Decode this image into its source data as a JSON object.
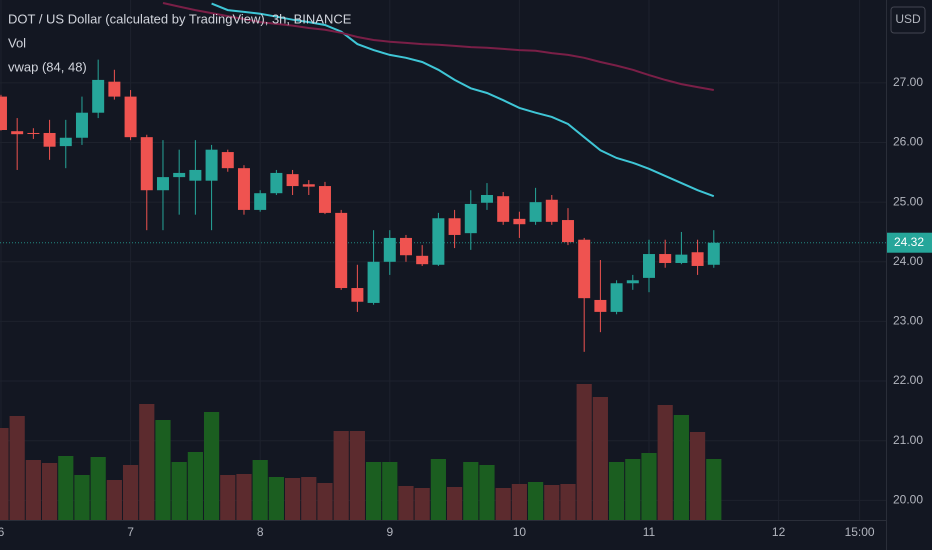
{
  "chart_data": {
    "type": "candlestick",
    "title": "DOT / US Dollar (calculated by TradingView), 3h, BINANCE",
    "volume_label": "Vol",
    "indicator_label": "vwap (84, 48)",
    "currency": "USD",
    "up_color": "#26a69a",
    "down_color": "#ef5350",
    "volume_up_color": "#1b5e20",
    "volume_down_color": "#5c2b2e",
    "open": [
      26.77,
      26.19,
      26.16,
      26.16,
      25.94,
      26.08,
      26.5,
      27.02,
      26.77,
      26.09,
      25.2,
      25.42,
      25.36,
      25.36,
      25.84,
      25.57,
      24.87,
      25.15,
      25.47,
      25.3,
      25.27,
      24.82,
      23.56,
      23.31,
      24.0,
      24.4,
      24.1,
      23.95,
      24.73,
      24.48,
      24.99,
      25.1,
      24.72,
      24.67,
      25.04,
      24.7,
      24.37,
      23.36,
      23.16,
      23.64,
      23.73,
      24.13,
      23.98,
      24.16,
      23.95
    ],
    "high": [
      26.8,
      26.41,
      26.24,
      26.38,
      26.38,
      26.77,
      27.39,
      27.22,
      26.88,
      26.13,
      26.04,
      25.88,
      26.04,
      25.96,
      25.88,
      25.62,
      25.2,
      25.54,
      25.54,
      25.37,
      25.34,
      24.87,
      23.95,
      24.53,
      24.53,
      24.45,
      24.28,
      24.82,
      24.87,
      25.2,
      25.32,
      25.17,
      24.84,
      25.24,
      25.12,
      24.9,
      24.4,
      24.03,
      23.69,
      23.78,
      24.37,
      24.37,
      24.5,
      24.37,
      24.53
    ],
    "low": [
      26.2,
      25.54,
      26.06,
      25.71,
      25.57,
      25.96,
      26.41,
      26.72,
      26.04,
      24.53,
      24.53,
      24.79,
      24.79,
      24.53,
      25.51,
      24.79,
      24.84,
      25.12,
      25.12,
      25.12,
      24.8,
      23.53,
      23.16,
      23.28,
      23.78,
      24.0,
      23.93,
      23.93,
      24.23,
      24.2,
      24.87,
      24.62,
      24.4,
      24.62,
      24.62,
      24.28,
      22.49,
      22.82,
      23.12,
      23.53,
      23.49,
      23.9,
      23.96,
      23.78,
      23.9
    ],
    "close": [
      26.21,
      26.14,
      26.15,
      25.93,
      26.08,
      26.5,
      27.05,
      26.77,
      26.09,
      25.2,
      25.42,
      25.49,
      25.54,
      25.88,
      25.57,
      24.87,
      25.15,
      25.49,
      25.27,
      25.26,
      24.82,
      23.56,
      23.33,
      24.0,
      24.4,
      24.11,
      23.96,
      24.73,
      24.45,
      24.97,
      25.12,
      24.67,
      24.63,
      25.0,
      24.67,
      24.33,
      23.39,
      23.16,
      23.64,
      23.69,
      24.13,
      23.98,
      24.12,
      23.93,
      24.32
    ],
    "volume": [
      92,
      104,
      60,
      57,
      64,
      45,
      63,
      40,
      55,
      116,
      100,
      58,
      68,
      108,
      45,
      46,
      60,
      43,
      42,
      43,
      37,
      89,
      89,
      58,
      58,
      34,
      32,
      61,
      33,
      58,
      55,
      32,
      36,
      38,
      35,
      36,
      136,
      123,
      58,
      61,
      67,
      115,
      105,
      88,
      61
    ],
    "series": [
      {
        "color": "#3fc6d6",
        "values": [
          null,
          null,
          null,
          null,
          null,
          null,
          null,
          null,
          null,
          null,
          null,
          null,
          null,
          28.33,
          28.22,
          28.19,
          28.16,
          28.11,
          28.06,
          28.02,
          27.97,
          27.86,
          27.65,
          27.55,
          27.47,
          27.42,
          27.35,
          27.22,
          27.05,
          26.91,
          26.83,
          26.71,
          26.58,
          26.5,
          26.43,
          26.31,
          26.09,
          25.87,
          25.74,
          25.66,
          25.56,
          25.44,
          25.32,
          25.2,
          25.1
        ]
      },
      {
        "color": "#7a1f47",
        "values": [
          null,
          null,
          null,
          null,
          null,
          null,
          null,
          null,
          null,
          null,
          28.34,
          28.28,
          28.22,
          28.17,
          28.12,
          28.07,
          28.02,
          27.99,
          27.96,
          27.92,
          27.89,
          27.84,
          27.77,
          27.72,
          27.69,
          27.67,
          27.65,
          27.64,
          27.62,
          27.6,
          27.59,
          27.57,
          27.55,
          27.54,
          27.5,
          27.47,
          27.42,
          27.35,
          27.29,
          27.22,
          27.13,
          27.05,
          26.98,
          26.93,
          26.88
        ]
      }
    ],
    "last_price": 24.32,
    "ylim": [
      19.67,
      28.39
    ],
    "yticks": [
      {
        "value": 20,
        "label": "20.00"
      },
      {
        "value": 21,
        "label": "21.00"
      },
      {
        "value": 22,
        "label": "22.00"
      },
      {
        "value": 23,
        "label": "23.00"
      },
      {
        "value": 24,
        "label": "24.00"
      },
      {
        "value": 25,
        "label": "25.00"
      },
      {
        "value": 26,
        "label": "26.00"
      },
      {
        "value": 27,
        "label": "27.00"
      }
    ],
    "xlim": [
      -0.06,
      54.63
    ],
    "xticks": [
      {
        "value": 0,
        "label": "6"
      },
      {
        "value": 8,
        "label": "7"
      },
      {
        "value": 16,
        "label": "8"
      },
      {
        "value": 24,
        "label": "9"
      },
      {
        "value": 32,
        "label": "10"
      },
      {
        "value": 40,
        "label": "11"
      },
      {
        "value": 48,
        "label": "12"
      },
      {
        "value": 53,
        "label": "15:00"
      }
    ],
    "grid": true
  }
}
